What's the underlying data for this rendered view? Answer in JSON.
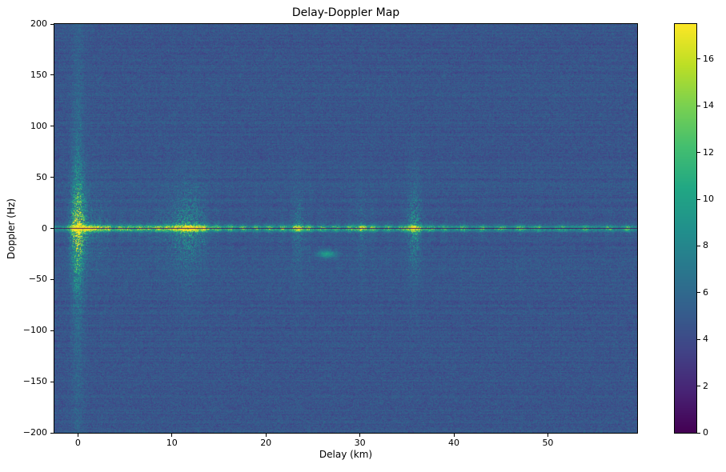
{
  "chart_data": {
    "type": "heatmap",
    "title": "Delay-Doppler Map",
    "xlabel": "Delay (km)",
    "ylabel": "Doppler (Hz)",
    "xlim": [
      -2.5,
      59.5
    ],
    "ylim": [
      -200,
      200
    ],
    "x_ticks": [
      {
        "v": 0,
        "label": "0"
      },
      {
        "v": 10,
        "label": "10"
      },
      {
        "v": 20,
        "label": "20"
      },
      {
        "v": 30,
        "label": "30"
      },
      {
        "v": 40,
        "label": "40"
      },
      {
        "v": 50,
        "label": "50"
      }
    ],
    "y_ticks": [
      {
        "v": 200,
        "label": "200"
      },
      {
        "v": 150,
        "label": "150"
      },
      {
        "v": 100,
        "label": "100"
      },
      {
        "v": 50,
        "label": "50"
      },
      {
        "v": 0,
        "label": "0"
      },
      {
        "v": -50,
        "label": "−50"
      },
      {
        "v": -100,
        "label": "−100"
      },
      {
        "v": -150,
        "label": "−150"
      },
      {
        "v": -200,
        "label": "−200"
      }
    ],
    "colorbar": {
      "vmin": 0,
      "vmax": 17.5,
      "ticks": [
        {
          "v": 0,
          "label": "0"
        },
        {
          "v": 2,
          "label": "2"
        },
        {
          "v": 4,
          "label": "4"
        },
        {
          "v": 6,
          "label": "6"
        },
        {
          "v": 8,
          "label": "8"
        },
        {
          "v": 10,
          "label": "10"
        },
        {
          "v": 12,
          "label": "12"
        },
        {
          "v": 14,
          "label": "14"
        },
        {
          "v": 16,
          "label": "16"
        }
      ]
    },
    "colormap": {
      "name": "viridis",
      "stops": [
        [
          0.0,
          "#440154"
        ],
        [
          0.1,
          "#482475"
        ],
        [
          0.2,
          "#414487"
        ],
        [
          0.3,
          "#355f8d"
        ],
        [
          0.4,
          "#2a788e"
        ],
        [
          0.5,
          "#21918c"
        ],
        [
          0.6,
          "#22a884"
        ],
        [
          0.7,
          "#44bf70"
        ],
        [
          0.8,
          "#7ad151"
        ],
        [
          0.9,
          "#bddf26"
        ],
        [
          1.0,
          "#fde725"
        ]
      ]
    },
    "noise": {
      "mean": 4.7,
      "amplitude": 1.6,
      "row_banding": 0.9,
      "seed": 42
    },
    "features": {
      "zero_doppler_ridge": {
        "base": 4.5,
        "sigma_hz": 2.2
      },
      "zero_doppler_notch": {
        "halfwidth_hz": 0.75,
        "value": 0.5
      },
      "zero_delay_streak": {
        "sigma_km": 0.45,
        "base": 1.0,
        "peak": 6.0,
        "falloff_hz": 45
      },
      "vertical_spurs": {
        "falloff_hz": 28
      },
      "ridge_peaks": [
        [
          0.0,
          13,
          0.5,
          0.9
        ],
        [
          1.2,
          8,
          0.4,
          0.35
        ],
        [
          2.2,
          7,
          0.4,
          0.3
        ],
        [
          3.2,
          6,
          0.35,
          0.25
        ],
        [
          4.5,
          5,
          0.35,
          0.2
        ],
        [
          5.5,
          4.5,
          0.3,
          0.2
        ],
        [
          6.5,
          5,
          0.35,
          0.25
        ],
        [
          7.5,
          4.5,
          0.3,
          0.2
        ],
        [
          8.5,
          5.5,
          0.35,
          0.3
        ],
        [
          9.5,
          6,
          0.35,
          0.35
        ],
        [
          10.5,
          7.5,
          0.4,
          0.45
        ],
        [
          11.3,
          8.5,
          0.4,
          0.5
        ],
        [
          12.0,
          8,
          0.4,
          0.5
        ],
        [
          12.8,
          7.5,
          0.4,
          0.45
        ],
        [
          13.6,
          6,
          0.35,
          0.3
        ],
        [
          14.8,
          5,
          0.3,
          0.2
        ],
        [
          16.2,
          4,
          0.3,
          0.18
        ],
        [
          17.6,
          3.5,
          0.3,
          0.15
        ],
        [
          19.0,
          3.5,
          0.3,
          0.15
        ],
        [
          20.4,
          4,
          0.3,
          0.18
        ],
        [
          21.8,
          4.5,
          0.3,
          0.2
        ],
        [
          23.4,
          8,
          0.45,
          0.45
        ],
        [
          24.6,
          4.5,
          0.3,
          0.2
        ],
        [
          26.0,
          3.5,
          0.3,
          0.15
        ],
        [
          27.5,
          3.5,
          0.3,
          0.15
        ],
        [
          29.0,
          4.5,
          0.3,
          0.2
        ],
        [
          30.2,
          6.5,
          0.4,
          0.35
        ],
        [
          31.4,
          4.5,
          0.3,
          0.2
        ],
        [
          33.0,
          3.5,
          0.3,
          0.15
        ],
        [
          34.5,
          3,
          0.3,
          0.12
        ],
        [
          35.8,
          10,
          0.5,
          0.6
        ],
        [
          37.5,
          3.5,
          0.3,
          0.15
        ],
        [
          39.0,
          3,
          0.3,
          0.12
        ],
        [
          41.0,
          3,
          0.3,
          0.1
        ],
        [
          43.0,
          3,
          0.3,
          0.12
        ],
        [
          45.0,
          3,
          0.3,
          0.1
        ],
        [
          47.0,
          3.5,
          0.3,
          0.12
        ],
        [
          49.0,
          3,
          0.3,
          0.1
        ],
        [
          51.5,
          3,
          0.3,
          0.1
        ],
        [
          54.0,
          3,
          0.3,
          0.1
        ],
        [
          56.5,
          3,
          0.3,
          0.1
        ],
        [
          58.5,
          3,
          0.3,
          0.1
        ]
      ],
      "blobs": [
        {
          "delay": 26.5,
          "doppler": -25,
          "amp": 5,
          "sigma_km": 0.7,
          "sigma_hz": 2.5
        }
      ]
    }
  }
}
